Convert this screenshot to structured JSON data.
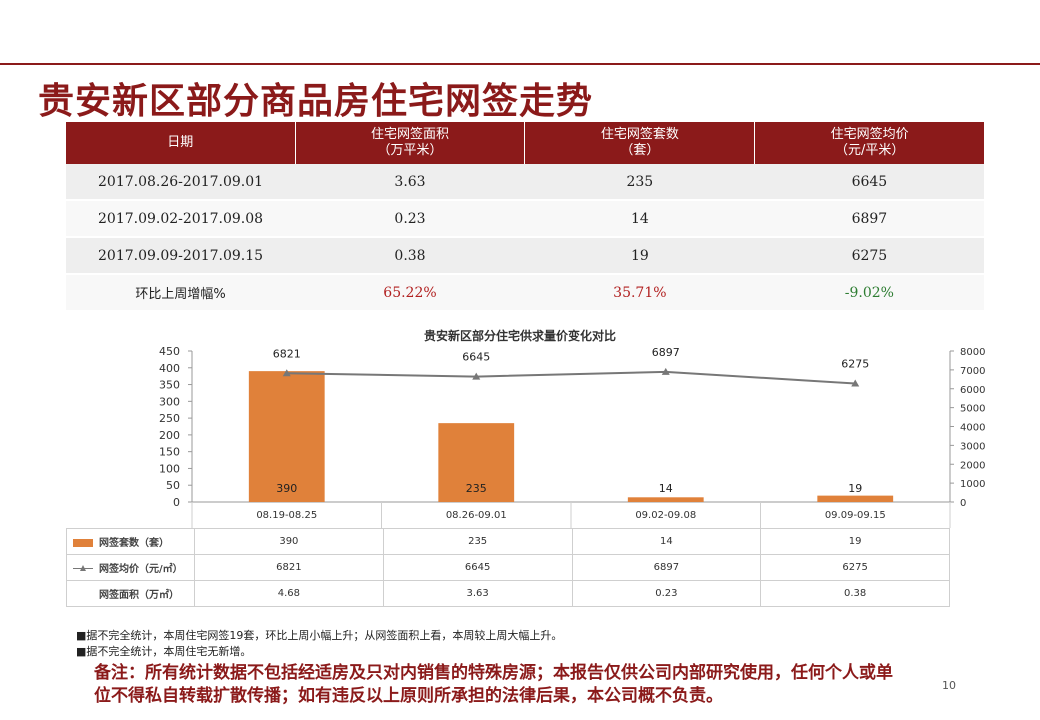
{
  "page": {
    "title": "贵安新区部分商品房住宅网签走势",
    "page_number": "10"
  },
  "summary_table": {
    "headers": {
      "date": "日期",
      "area": "住宅网签面积",
      "area_unit": "（万平米）",
      "units": "住宅网签套数",
      "units_unit": "（套）",
      "price": "住宅网签均价",
      "price_unit": "（元/平米）"
    },
    "rows": [
      {
        "date": "2017.08.26-2017.09.01",
        "area": "3.63",
        "units": "235",
        "price": "6645"
      },
      {
        "date": "2017.09.02-2017.09.08",
        "area": "0.23",
        "units": "14",
        "price": "6897"
      },
      {
        "date": "2017.09.09-2017.09.15",
        "area": "0.38",
        "units": "19",
        "price": "6275"
      }
    ],
    "change_row": {
      "label": "环比上周增幅%",
      "area": "65.22%",
      "units": "35.71%",
      "price": "-9.02%"
    },
    "colors": {
      "positive": "#b22222",
      "negative": "#2e7d32",
      "header_bg": "#8b1a1a"
    }
  },
  "chart_data": {
    "type": "bar",
    "title": "贵安新区部分住宅供求量价变化对比",
    "categories": [
      "08.19-08.25",
      "08.26-09.01",
      "09.02-09.08",
      "09.09-09.15"
    ],
    "series": [
      {
        "name": "网签套数（套）",
        "type": "bar",
        "axis": "left",
        "color": "#e0813a",
        "values": [
          390,
          235,
          14,
          19
        ],
        "labels": [
          "390",
          "235",
          "14",
          "19"
        ]
      },
      {
        "name": "网签均价（元/㎡）",
        "type": "line",
        "axis": "right",
        "color": "#777777",
        "values": [
          6821,
          6645,
          6897,
          6275
        ],
        "labels": [
          "6821",
          "6645",
          "6897",
          "6275"
        ]
      }
    ],
    "y_left": {
      "min": 0,
      "max": 450,
      "ticks": [
        "0",
        "50",
        "100",
        "150",
        "200",
        "250",
        "300",
        "350",
        "400",
        "450"
      ]
    },
    "y_right": {
      "min": 0,
      "max": 8000,
      "ticks": [
        "0",
        "1000",
        "2000",
        "3000",
        "4000",
        "5000",
        "6000",
        "7000",
        "8000"
      ]
    },
    "data_table": {
      "rows": [
        {
          "label": "网签套数（套）",
          "swatch": "bar",
          "values": [
            "390",
            "235",
            "14",
            "19"
          ]
        },
        {
          "label": "网签均价（元/㎡）",
          "swatch": "line",
          "values": [
            "6821",
            "6645",
            "6897",
            "6275"
          ]
        },
        {
          "label": "网签面积（万㎡）",
          "swatch": "none",
          "values": [
            "4.68",
            "3.63",
            "0.23",
            "0.38"
          ]
        }
      ]
    },
    "grid": false,
    "legend": "bottom-table"
  },
  "notes": [
    "■据不完全统计，本周住宅网签19套，环比上周小幅上升；从网签面积上看，本周较上周大幅上升。",
    "■据不完全统计，本周住宅无新增。"
  ],
  "remark": "备注：所有统计数据不包括经适房及只对内销售的特殊房源；本报告仅供公司内部研究使用，任何个人或单位不得私自转载扩散传播；如有违反以上原则所承担的法律后果，本公司概不负责。"
}
